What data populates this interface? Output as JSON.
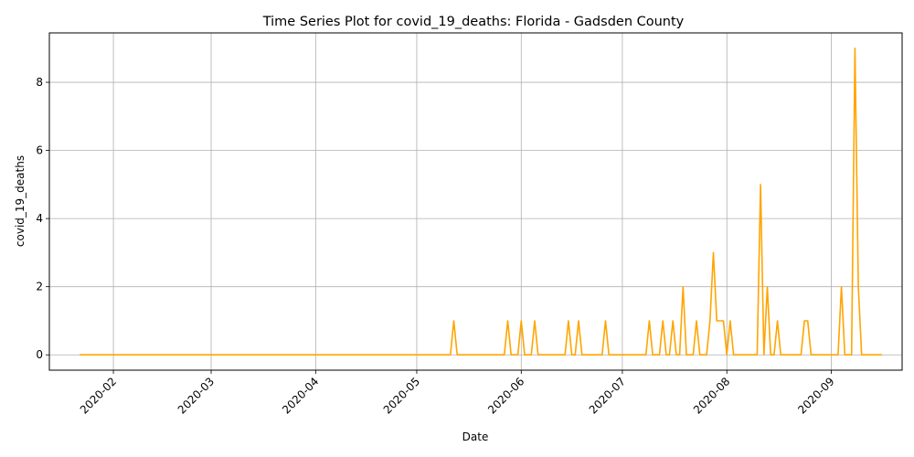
{
  "chart_data": {
    "type": "line",
    "title": "Time Series Plot for covid_19_deaths: Florida - Gadsden County",
    "xlabel": "Date",
    "ylabel": "covid_19_deaths",
    "x_range": [
      "2020-01-13",
      "2020-09-22"
    ],
    "ylim": [
      -0.45,
      9.45
    ],
    "x_ticks": [
      "2020-02-01",
      "2020-03-01",
      "2020-04-01",
      "2020-05-01",
      "2020-06-01",
      "2020-07-01",
      "2020-08-01",
      "2020-09-01"
    ],
    "x_tick_labels": [
      "2020-02",
      "2020-03",
      "2020-04",
      "2020-05",
      "2020-06",
      "2020-07",
      "2020-08",
      "2020-09"
    ],
    "y_ticks": [
      0,
      2,
      4,
      6,
      8
    ],
    "y_tick_labels": [
      "0",
      "2",
      "4",
      "6",
      "8"
    ],
    "grid": true,
    "legend": "none",
    "series": [
      {
        "color": "#ffa500",
        "points": [
          [
            "2020-01-22",
            0
          ],
          [
            "2020-05-11",
            0
          ],
          [
            "2020-05-12",
            1
          ],
          [
            "2020-05-13",
            0
          ],
          [
            "2020-05-27",
            0
          ],
          [
            "2020-05-28",
            1
          ],
          [
            "2020-05-29",
            0
          ],
          [
            "2020-05-31",
            0
          ],
          [
            "2020-06-01",
            1
          ],
          [
            "2020-06-02",
            0
          ],
          [
            "2020-06-04",
            0
          ],
          [
            "2020-06-05",
            1
          ],
          [
            "2020-06-06",
            0
          ],
          [
            "2020-06-14",
            0
          ],
          [
            "2020-06-15",
            1
          ],
          [
            "2020-06-16",
            0
          ],
          [
            "2020-06-17",
            0
          ],
          [
            "2020-06-18",
            1
          ],
          [
            "2020-06-19",
            0
          ],
          [
            "2020-06-25",
            0
          ],
          [
            "2020-06-26",
            1
          ],
          [
            "2020-06-27",
            0
          ],
          [
            "2020-07-08",
            0
          ],
          [
            "2020-07-09",
            1
          ],
          [
            "2020-07-10",
            0
          ],
          [
            "2020-07-12",
            0
          ],
          [
            "2020-07-13",
            1
          ],
          [
            "2020-07-14",
            0
          ],
          [
            "2020-07-15",
            0
          ],
          [
            "2020-07-16",
            1
          ],
          [
            "2020-07-17",
            0
          ],
          [
            "2020-07-18",
            0
          ],
          [
            "2020-07-19",
            2
          ],
          [
            "2020-07-20",
            0
          ],
          [
            "2020-07-22",
            0
          ],
          [
            "2020-07-23",
            1
          ],
          [
            "2020-07-24",
            0
          ],
          [
            "2020-07-26",
            0
          ],
          [
            "2020-07-27",
            1
          ],
          [
            "2020-07-28",
            3
          ],
          [
            "2020-07-29",
            1
          ],
          [
            "2020-07-31",
            1
          ],
          [
            "2020-08-01",
            0
          ],
          [
            "2020-08-02",
            1
          ],
          [
            "2020-08-03",
            0
          ],
          [
            "2020-08-10",
            0
          ],
          [
            "2020-08-11",
            5
          ],
          [
            "2020-08-12",
            0
          ],
          [
            "2020-08-13",
            2
          ],
          [
            "2020-08-14",
            0
          ],
          [
            "2020-08-15",
            0
          ],
          [
            "2020-08-16",
            1
          ],
          [
            "2020-08-17",
            0
          ],
          [
            "2020-08-23",
            0
          ],
          [
            "2020-08-24",
            1
          ],
          [
            "2020-08-25",
            1
          ],
          [
            "2020-08-26",
            0
          ],
          [
            "2020-09-03",
            0
          ],
          [
            "2020-09-04",
            2
          ],
          [
            "2020-09-05",
            0
          ],
          [
            "2020-09-07",
            0
          ],
          [
            "2020-09-08",
            9
          ],
          [
            "2020-09-09",
            2
          ],
          [
            "2020-09-10",
            0
          ],
          [
            "2020-09-16",
            0
          ]
        ]
      }
    ]
  }
}
